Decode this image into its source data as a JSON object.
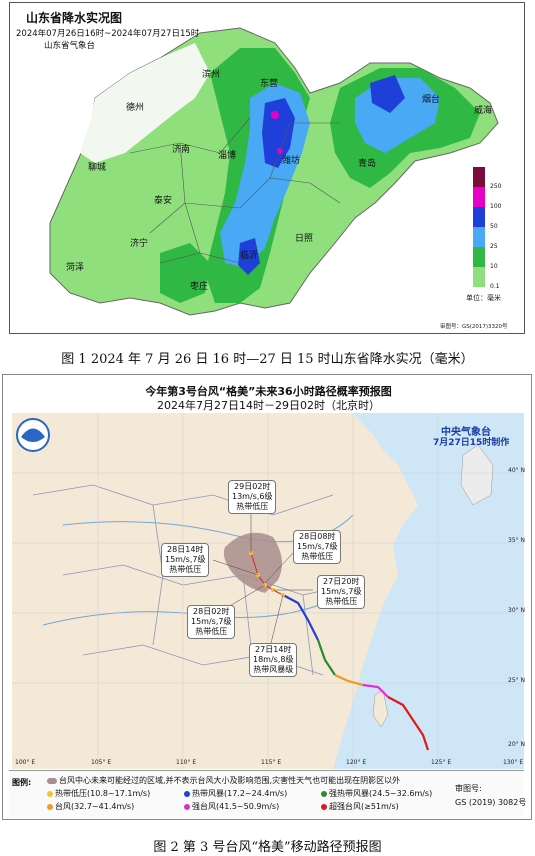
{
  "figure1": {
    "title": "山东省降水实况图",
    "time_range": "2024年07月26日16时~2024年07月27日15时",
    "agency": "山东省气象台",
    "cities": [
      "滨州",
      "东营",
      "烟台",
      "威海",
      "德州",
      "淄博",
      "潍坊",
      "青岛",
      "济南",
      "聊城",
      "泰安",
      "日照",
      "济宁",
      "临沂",
      "菏泽",
      "枣庄"
    ],
    "legend_ticks": [
      "250",
      "100",
      "50",
      "25",
      "10",
      "0.1"
    ],
    "unit": "单位：毫米",
    "map_review_number": "审图号：GS(2017)3320号",
    "legend_colors": [
      "#7a0d3c",
      "#e600c8",
      "#1f3fd9",
      "#49a9f5",
      "#2fb844",
      "#8fe07c"
    ],
    "caption": "图 1  2024 年 7 月 26 日 16 时—27 日 15 时山东省降水实况（毫米）"
  },
  "figure2": {
    "title_line1": "今年第3号台风“格美”未来36小时路径概率预报图",
    "title_line2": "2024年7月27日14时－29日02时（北京时）",
    "agency": "中央气象台",
    "issued": "7月27日15时制作",
    "labels": [
      {
        "time": "29日02时",
        "wind": "13m/s,6级",
        "type": "热带低压"
      },
      {
        "time": "28日08时",
        "wind": "15m/s,7级",
        "type": "热带低压"
      },
      {
        "time": "28日14时",
        "wind": "15m/s,7级",
        "type": "热带低压"
      },
      {
        "time": "27日20时",
        "wind": "15m/s,7级",
        "type": "热带低压"
      },
      {
        "time": "28日02时",
        "wind": "15m/s,7级",
        "type": "热带低压"
      },
      {
        "time": "27日14时",
        "wind": "18m/s,8级",
        "type": "热带风暴级"
      }
    ],
    "lon_labels": [
      "100° E",
      "105° E",
      "110° E",
      "115° E",
      "120° E",
      "125° E",
      "130° E"
    ],
    "lat_labels": [
      "40° N",
      "35° N",
      "30° N",
      "25° N",
      "20° N"
    ],
    "legend_title": "图例:",
    "legend_prob": "台风中心未来可能经过的区域,并不表示台风大小及影响范围,灾害性天气也可能出现在阴影区以外",
    "legend_items": [
      {
        "label": "热带低压(10.8~17.1m/s)",
        "color": "#f6c22e"
      },
      {
        "label": "热带风暴(17.2~24.4m/s)",
        "color": "#1f3fd9"
      },
      {
        "label": "强热带风暴(24.5~32.6m/s)",
        "color": "#2a8c2a"
      },
      {
        "label": "台风(32.7~41.4m/s)",
        "color": "#f39a1e"
      },
      {
        "label": "强台风(41.5~50.9m/s)",
        "color": "#e02cd0"
      },
      {
        "label": "超强台风(≥51m/s)",
        "color": "#e01818"
      }
    ],
    "review_label": "审图号:",
    "review_number": "GS (2019) 3082号",
    "caption": "图 2    第 3 号台风“格美”移动路径预报图"
  }
}
